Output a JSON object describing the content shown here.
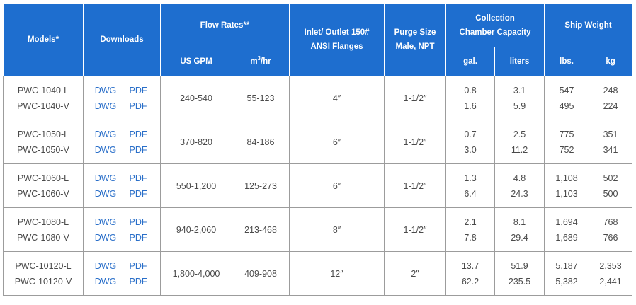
{
  "header": {
    "models": "Models*",
    "downloads": "Downloads",
    "flow_rates": "Flow Rates**",
    "inlet_outlet": [
      "Inlet/ Outlet 150#",
      "ANSI Flanges"
    ],
    "purge_size": [
      "Purge Size",
      "Male, NPT"
    ],
    "collection": [
      "Collection",
      "Chamber Capacity"
    ],
    "ship_weight": "Ship Weight",
    "us_gpm": "US GPM",
    "m3hr_base": "m",
    "m3hr_sup": "3",
    "m3hr_tail": "/hr",
    "gal": "gal.",
    "liters": "liters",
    "lbs": "lbs.",
    "kg": "kg"
  },
  "downloads": {
    "dwg": "DWG",
    "pdf": "PDF"
  },
  "rows": [
    {
      "models": [
        "PWC-1040-L",
        "PWC-1040-V"
      ],
      "gpm": "240-540",
      "m3hr": "55-123",
      "inlet": "4″",
      "purge": "1-1/2″",
      "gal": [
        "0.8",
        "1.6"
      ],
      "liters": [
        "3.1",
        "5.9"
      ],
      "lbs": [
        "547",
        "495"
      ],
      "kg": [
        "248",
        "224"
      ]
    },
    {
      "models": [
        "PWC-1050-L",
        "PWC-1050-V"
      ],
      "gpm": "370-820",
      "m3hr": "84-186",
      "inlet": "6″",
      "purge": "1-1/2″",
      "gal": [
        "0.7",
        "3.0"
      ],
      "liters": [
        "2.5",
        "11.2"
      ],
      "lbs": [
        "775",
        "752"
      ],
      "kg": [
        "351",
        "341"
      ]
    },
    {
      "models": [
        "PWC-1060-L",
        "PWC-1060-V"
      ],
      "gpm": "550-1,200",
      "m3hr": "125-273",
      "inlet": "6″",
      "purge": "1-1/2″",
      "gal": [
        "1.3",
        "6.4"
      ],
      "liters": [
        "4.8",
        "24.3"
      ],
      "lbs": [
        "1,108",
        "1,103"
      ],
      "kg": [
        "502",
        "500"
      ]
    },
    {
      "models": [
        "PWC-1080-L",
        "PWC-1080-V"
      ],
      "gpm": "940-2,060",
      "m3hr": "213-468",
      "inlet": "8″",
      "purge": "1-1/2″",
      "gal": [
        "2.1",
        "7.8"
      ],
      "liters": [
        "8.1",
        "29.4"
      ],
      "lbs": [
        "1,694",
        "1,689"
      ],
      "kg": [
        "768",
        "766"
      ]
    },
    {
      "models": [
        "PWC-10120-L",
        "PWC-10120-V"
      ],
      "gpm": "1,800-4,000",
      "m3hr": "409-908",
      "inlet": "12″",
      "purge": "2″",
      "gal": [
        "13.7",
        "62.2"
      ],
      "liters": [
        "51.9",
        "235.5"
      ],
      "lbs": [
        "5,187",
        "5,382"
      ],
      "kg": [
        "2,353",
        "2,441"
      ]
    }
  ]
}
